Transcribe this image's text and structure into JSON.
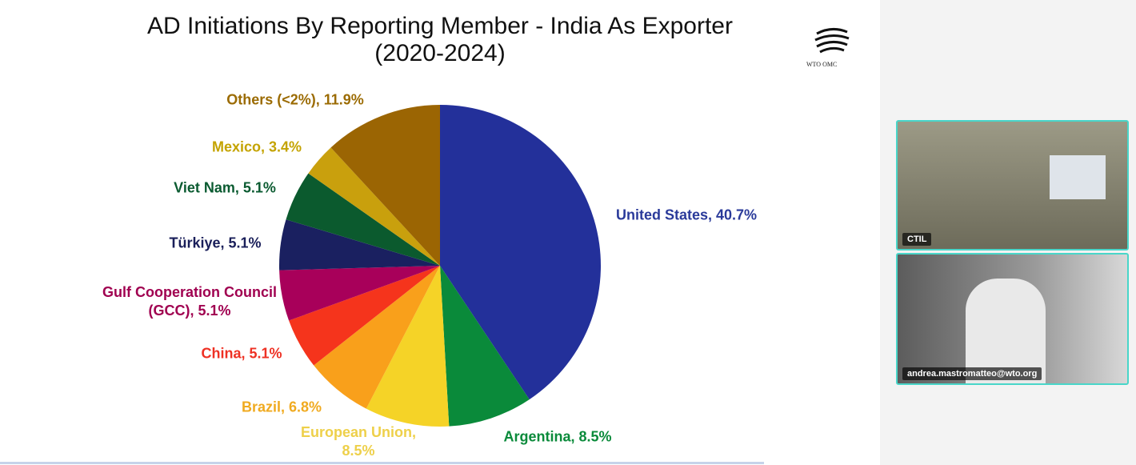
{
  "chart_data": {
    "type": "pie",
    "title": "AD Initiations By Reporting Member - India As Exporter (2020-2024)",
    "labels": [
      "United States, 40.7%",
      "Argentina, 8.5%",
      "European Union, 8.5%",
      "Brazil, 6.8%",
      "China, 5.1%",
      "Gulf Cooperation Council (GCC), 5.1%",
      "Türkiye, 5.1%",
      "Viet Nam, 5.1%",
      "Mexico, 3.4%",
      "Others (<2%), 11.9%"
    ],
    "values": [
      40.7,
      8.5,
      8.5,
      6.8,
      5.1,
      5.1,
      5.1,
      5.1,
      3.4,
      11.9
    ],
    "colors": [
      "#23309a",
      "#0a8a3a",
      "#f5d327",
      "#f9a01b",
      "#f5341c",
      "#a8005a",
      "#1a2060",
      "#0b5a2e",
      "#c9a00d",
      "#9b6503"
    ],
    "label_colors": [
      "#2a3a9a",
      "#0a8a3a",
      "#eed04a",
      "#f0aa1f",
      "#ee3124",
      "#a00050",
      "#1a1f5a",
      "#0a5a30",
      "#c4a300",
      "#9b6b03"
    ]
  },
  "logo": "WTO OMC",
  "participants": [
    "CTIL",
    "andrea.mastromatteo@wto.org"
  ]
}
